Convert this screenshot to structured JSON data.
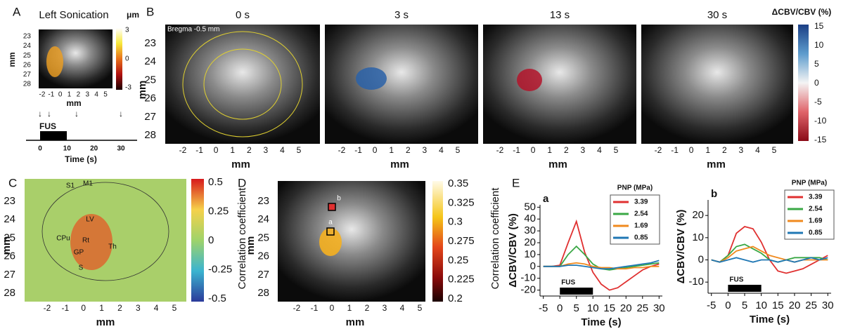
{
  "panel_a": {
    "label": "A",
    "title": "Left Sonication",
    "unit": "μm",
    "yticks": [
      23,
      24,
      25,
      26,
      27,
      28
    ],
    "xticks": [
      -2,
      -1,
      0,
      1,
      2,
      3,
      4,
      5
    ],
    "xlabel": "mm",
    "ylabel": "mm",
    "colorbar_ticks": [
      3,
      0,
      -3
    ],
    "stim_label": "FUS",
    "time_ticks": [
      0,
      10,
      20,
      30
    ],
    "time_label": "Time (s)"
  },
  "panel_b": {
    "label": "B",
    "times": [
      "0 s",
      "3 s",
      "13 s",
      "30 s"
    ],
    "bregma": "Bregma -0.5 mm",
    "yticks": [
      23,
      24,
      25,
      26,
      27,
      28
    ],
    "xticks": [
      -2,
      -1,
      0,
      1,
      2,
      3,
      4,
      5
    ],
    "xlabel": "mm",
    "ylabel": "mm",
    "colorbar_title": "ΔCBV/CBV (%)",
    "colorbar_ticks": [
      15,
      10,
      5,
      0,
      -5,
      -10,
      -15
    ]
  },
  "panel_c": {
    "label": "C",
    "regions": [
      "S1",
      "M1",
      "LV",
      "CPu",
      "Rt",
      "Th",
      "GP",
      "S"
    ],
    "yticks": [
      23,
      24,
      25,
      26,
      27,
      28
    ],
    "xticks": [
      -2,
      -1,
      0,
      1,
      2,
      3,
      4,
      5
    ],
    "xlabel": "mm",
    "ylabel": "mm",
    "colorbar_ticks": [
      0.5,
      0.25,
      0,
      -0.25,
      -0.5
    ],
    "colorbar_label": "Correlation coefficient"
  },
  "panel_d": {
    "label": "D",
    "markers": [
      "a",
      "b"
    ],
    "yticks": [
      23,
      24,
      25,
      26,
      27,
      28
    ],
    "xticks": [
      -2,
      -1,
      0,
      1,
      2,
      3,
      4,
      5
    ],
    "xlabel": "mm",
    "ylabel": "mm",
    "colorbar_ticks": [
      0.35,
      0.325,
      0.3,
      0.275,
      0.25,
      0.225,
      0.2
    ],
    "colorbar_label": "Correlation coefficient"
  },
  "panel_e": {
    "label": "E"
  },
  "chart_data": [
    {
      "type": "line",
      "title": "a",
      "xlabel": "Time (s)",
      "ylabel": "ΔCBV/CBV (%)",
      "legend_title": "PNP (MPa)",
      "annotation": "FUS",
      "annotation_span": [
        0,
        10
      ],
      "x": [
        -5,
        -2.5,
        0,
        2.5,
        5,
        7.5,
        10,
        12.5,
        15,
        17.5,
        20,
        22.5,
        25,
        27.5,
        30
      ],
      "xlim": [
        -6,
        31
      ],
      "xticks": [
        -5,
        0,
        5,
        10,
        15,
        20,
        25,
        30
      ],
      "ylim": [
        -25,
        52
      ],
      "yticks": [
        -20,
        -10,
        0,
        10,
        20,
        30,
        40,
        50
      ],
      "series": [
        {
          "name": "3.39",
          "color": "#e03030",
          "values": [
            0,
            0,
            1,
            20,
            38,
            12,
            -5,
            -15,
            -20,
            -18,
            -13,
            -8,
            -3,
            0,
            2
          ]
        },
        {
          "name": "2.54",
          "color": "#3aa845",
          "values": [
            0,
            0,
            0,
            10,
            17,
            10,
            2,
            -2,
            -3,
            -2,
            -1,
            0,
            1,
            2,
            3
          ]
        },
        {
          "name": "1.69",
          "color": "#f08a1e",
          "values": [
            0,
            0,
            0,
            2,
            3,
            2,
            0,
            -1,
            -1,
            -2,
            -2,
            -1,
            -1,
            0,
            0
          ]
        },
        {
          "name": "0.85",
          "color": "#1f77b4",
          "values": [
            0,
            0,
            0,
            1,
            1,
            0,
            -1,
            -2,
            -2,
            -1,
            0,
            1,
            2,
            3,
            5
          ]
        }
      ]
    },
    {
      "type": "line",
      "title": "b",
      "xlabel": "Time (s)",
      "ylabel": "ΔCBV/CBV (%)",
      "legend_title": "PNP (MPa)",
      "annotation": "FUS",
      "annotation_span": [
        0,
        10
      ],
      "x": [
        -5,
        -2.5,
        0,
        2.5,
        5,
        7.5,
        10,
        12.5,
        15,
        17.5,
        20,
        22.5,
        25,
        27.5,
        30
      ],
      "xlim": [
        -6,
        31
      ],
      "xticks": [
        -5,
        0,
        5,
        10,
        15,
        20,
        25,
        30
      ],
      "ylim": [
        -15,
        27
      ],
      "yticks": [
        -10,
        0,
        10,
        20
      ],
      "series": [
        {
          "name": "3.39",
          "color": "#e03030",
          "values": [
            0,
            -1,
            2,
            12,
            15,
            14,
            8,
            0,
            -5,
            -6,
            -5,
            -4,
            -2,
            0,
            2
          ]
        },
        {
          "name": "2.54",
          "color": "#3aa845",
          "values": [
            0,
            -1,
            2,
            6,
            7,
            5,
            3,
            0,
            -1,
            0,
            1,
            1,
            1,
            1,
            0
          ]
        },
        {
          "name": "1.69",
          "color": "#f08a1e",
          "values": [
            0,
            -1,
            1,
            4,
            5,
            6,
            4,
            2,
            1,
            0,
            -1,
            0,
            0,
            0,
            0
          ]
        },
        {
          "name": "0.85",
          "color": "#1f77b4",
          "values": [
            0,
            -1,
            0,
            1,
            0,
            -1,
            0,
            0,
            -1,
            0,
            -1,
            0,
            1,
            0,
            1
          ]
        }
      ]
    }
  ]
}
